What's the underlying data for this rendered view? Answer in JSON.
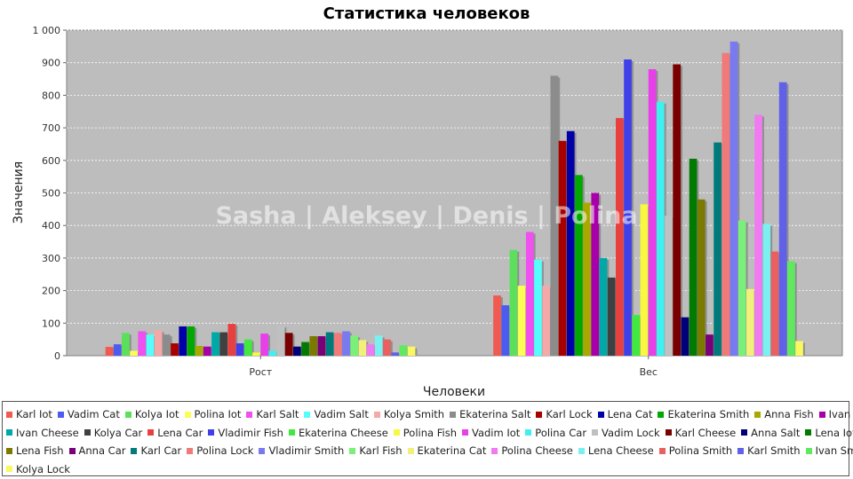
{
  "chart_data": {
    "type": "bar",
    "title": "Статистика человеков",
    "xlabel": "Человеки",
    "ylabel": "Значения",
    "watermark": "Sasha | Aleksey | Denis | Polina",
    "categories": [
      "Рост",
      "Вес"
    ],
    "ylim": [
      0,
      1000
    ],
    "y_ticks": [
      "0",
      "100",
      "200",
      "300",
      "400",
      "500",
      "600",
      "700",
      "800",
      "900",
      "1 000"
    ],
    "grid": true,
    "legend_position": "bottom",
    "series": [
      {
        "name": "Karl Iot",
        "color": "#f15a50",
        "values": [
          27,
          185
        ]
      },
      {
        "name": "Vadim Cat",
        "color": "#4d5cf0",
        "values": [
          35,
          155
        ]
      },
      {
        "name": "Kolya Iot",
        "color": "#5ce05c",
        "values": [
          70,
          325
        ]
      },
      {
        "name": "Polina Iot",
        "color": "#fdfd55",
        "values": [
          15,
          215
        ]
      },
      {
        "name": "Karl Salt",
        "color": "#f050f0",
        "values": [
          75,
          380
        ]
      },
      {
        "name": "Vadim Salt",
        "color": "#55fdfd",
        "values": [
          65,
          295
        ]
      },
      {
        "name": "Kolya Smith",
        "color": "#f5a8a8",
        "values": [
          78,
          215
        ]
      },
      {
        "name": "Ekaterina Salt",
        "color": "#8c8c8c",
        "values": [
          65,
          860
        ]
      },
      {
        "name": "Karl Lock",
        "color": "#a80000",
        "values": [
          38,
          660
        ]
      },
      {
        "name": "Lena Cat",
        "color": "#0000a8",
        "values": [
          90,
          690
        ]
      },
      {
        "name": "Ekaterina Smith",
        "color": "#00a800",
        "values": [
          90,
          555
        ]
      },
      {
        "name": "Anna Fish",
        "color": "#a8a800",
        "values": [
          30,
          470
        ]
      },
      {
        "name": "Ivan Lock",
        "color": "#a800a8",
        "values": [
          28,
          500
        ]
      },
      {
        "name": "Ivan Cheese",
        "color": "#00a8a8",
        "values": [
          72,
          300
        ]
      },
      {
        "name": "Kolya Car",
        "color": "#404040",
        "values": [
          72,
          240
        ]
      },
      {
        "name": "Lena Car",
        "color": "#e84040",
        "values": [
          98,
          730
        ]
      },
      {
        "name": "Vladimir Fish",
        "color": "#4040e8",
        "values": [
          38,
          910
        ]
      },
      {
        "name": "Ekaterina Cheese",
        "color": "#40e840",
        "values": [
          50,
          125
        ]
      },
      {
        "name": "Polina Fish",
        "color": "#f8f840",
        "values": [
          10,
          465
        ]
      },
      {
        "name": "Vadim Iot",
        "color": "#e840e8",
        "values": [
          68,
          880
        ]
      },
      {
        "name": "Polina Car",
        "color": "#40f0f0",
        "values": [
          15,
          780
        ]
      },
      {
        "name": "Vadim Lock",
        "color": "#c0c0c0",
        "values": [
          92,
          430
        ]
      },
      {
        "name": "Karl Cheese",
        "color": "#7a0000",
        "values": [
          70,
          895
        ]
      },
      {
        "name": "Anna Salt",
        "color": "#00007a",
        "values": [
          28,
          118
        ]
      },
      {
        "name": "Lena Iot",
        "color": "#007a00",
        "values": [
          42,
          605
        ]
      },
      {
        "name": "Lena Fish",
        "color": "#7a7a00",
        "values": [
          60,
          480
        ]
      },
      {
        "name": "Anna Car",
        "color": "#7a007a",
        "values": [
          60,
          65
        ]
      },
      {
        "name": "Karl Car",
        "color": "#007a7a",
        "values": [
          72,
          655
        ]
      },
      {
        "name": "Polina Lock",
        "color": "#f07a7a",
        "values": [
          70,
          930
        ]
      },
      {
        "name": "Vladimir Smith",
        "color": "#7a7af0",
        "values": [
          75,
          965
        ]
      },
      {
        "name": "Karl Fish",
        "color": "#7af07a",
        "values": [
          62,
          415
        ]
      },
      {
        "name": "Ekaterina Cat",
        "color": "#f0f07a",
        "values": [
          48,
          205
        ]
      },
      {
        "name": "Polina Cheese",
        "color": "#f07af0",
        "values": [
          35,
          740
        ]
      },
      {
        "name": "Lena Cheese",
        "color": "#7af0f0",
        "values": [
          62,
          405
        ]
      },
      {
        "name": "Polina Smith",
        "color": "#e86060",
        "values": [
          50,
          320
        ]
      },
      {
        "name": "Karl Smith",
        "color": "#6060e8",
        "values": [
          10,
          840
        ]
      },
      {
        "name": "Ivan Smith",
        "color": "#60e860",
        "values": [
          32,
          290
        ]
      },
      {
        "name": "Kolya Lock",
        "color": "#f8f860",
        "values": [
          28,
          45
        ]
      }
    ]
  }
}
